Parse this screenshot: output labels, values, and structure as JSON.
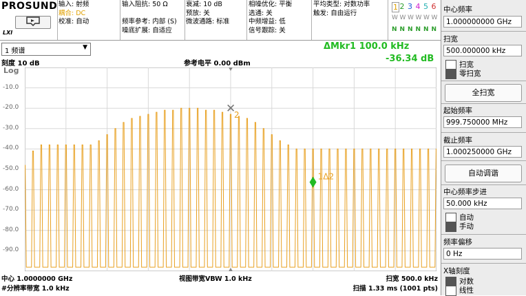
{
  "header": {
    "logo": "PROSUND",
    "lxi": "LXI",
    "col1": [
      {
        "text": "输入: 射频",
        "color": "#000000"
      },
      {
        "text": "耦合: DC",
        "color": "#e0a000"
      },
      {
        "text": "校准: 自动",
        "color": "#000000"
      }
    ],
    "col2": [
      "输入阻抗: 50 Ω",
      "",
      "频率参考: 内部 (S)",
      "噪底扩展: 自适应"
    ],
    "col3": [
      "衰减: 10 dB",
      "预放: 关",
      "微波通路: 标准"
    ],
    "col4": [
      "相噪优化: 平衡",
      "选通: 关",
      "中频增益: 低",
      "信号跟踪: 关"
    ],
    "col5": [
      "平均类型: 对数功率",
      "触发: 自由运行"
    ],
    "trace_numbers": [
      "1",
      "2",
      "3",
      "4",
      "5",
      "6"
    ],
    "trace_colors": [
      "#e0a000",
      "#2a9d2a",
      "#1e5fd6",
      "#d020d0",
      "#20b0b0",
      "#d03030"
    ],
    "trace_type": "W",
    "trace_detector": "N"
  },
  "display": {
    "mode_select": "1 频谱",
    "marker_line1": "ΔMkr1  100.0 kHz",
    "marker_line2": "-36.34 dB",
    "scale": "刻度 10 dB",
    "scale_type": "Log",
    "ref_level": "参考电平 0.00 dBm",
    "y_ticks": [
      "-10.0",
      "-20.0",
      "-30.0",
      "-40.0",
      "-50.0",
      "-60.0",
      "-70.0",
      "-80.0",
      "-90.0"
    ],
    "marker2_label": "2",
    "marker1_label": "1Δ2",
    "trace_color": "#e8a020",
    "marker_color": "#22bb22"
  },
  "chart_data": {
    "type": "line",
    "x_center_ghz": 1.0,
    "x_span_khz": 500.0,
    "ylim": [
      -100,
      0
    ],
    "comb_spacing_khz": 10,
    "peak_envelope_dbm": [
      -48,
      -41,
      -38,
      -38,
      -38,
      -38,
      -38,
      -38,
      -38,
      -36,
      -33,
      -30,
      -27,
      -25,
      -24,
      -23,
      -22,
      -21,
      -21,
      -20,
      -20,
      -20,
      -21,
      -21,
      -22,
      -23,
      -24,
      -25,
      -27,
      -30,
      -33,
      -36,
      -38,
      -40,
      -40,
      -40,
      -40,
      -40,
      -40,
      -40,
      -40,
      -40,
      -40,
      -40,
      -40,
      -40,
      -40,
      -40,
      -40,
      -40,
      -40
    ],
    "floor_dbm": -98,
    "marker2": {
      "x_offset_khz": 0,
      "y_dbm": -20.0
    },
    "marker1": {
      "x_offset_khz": 100,
      "y_dbm": -56.3
    }
  },
  "footer": {
    "center": "中心 1.0000000 GHz",
    "rbw": "#分辨率带宽 1.0 kHz",
    "vbw": "视图带宽VBW 1.0 kHz",
    "span": "扫宽 500.0 kHz",
    "sweep": "扫描 1.33 ms (1001 pts)"
  },
  "softkeys": {
    "center_freq_label": "中心频率",
    "center_freq_value": "1.000000000 GHz",
    "span_label": "扫宽",
    "span_value": "500.000000 kHz",
    "span_opt1": "扫宽",
    "span_opt2": "零扫宽",
    "full_span": "全扫宽",
    "start_label": "起始频率",
    "start_value": "999.750000 MHz",
    "stop_label": "截止频率",
    "stop_value": "1.000250000 GHz",
    "auto_tune": "自动调谐",
    "step_label": "中心频率步进",
    "step_value": "50.000 kHz",
    "step_opt1": "自动",
    "step_opt2": "手动",
    "offset_label": "频率偏移",
    "offset_value": "0 Hz",
    "xscale_label": "X轴刻度",
    "xscale_opt1": "对数",
    "xscale_opt2": "线性"
  }
}
